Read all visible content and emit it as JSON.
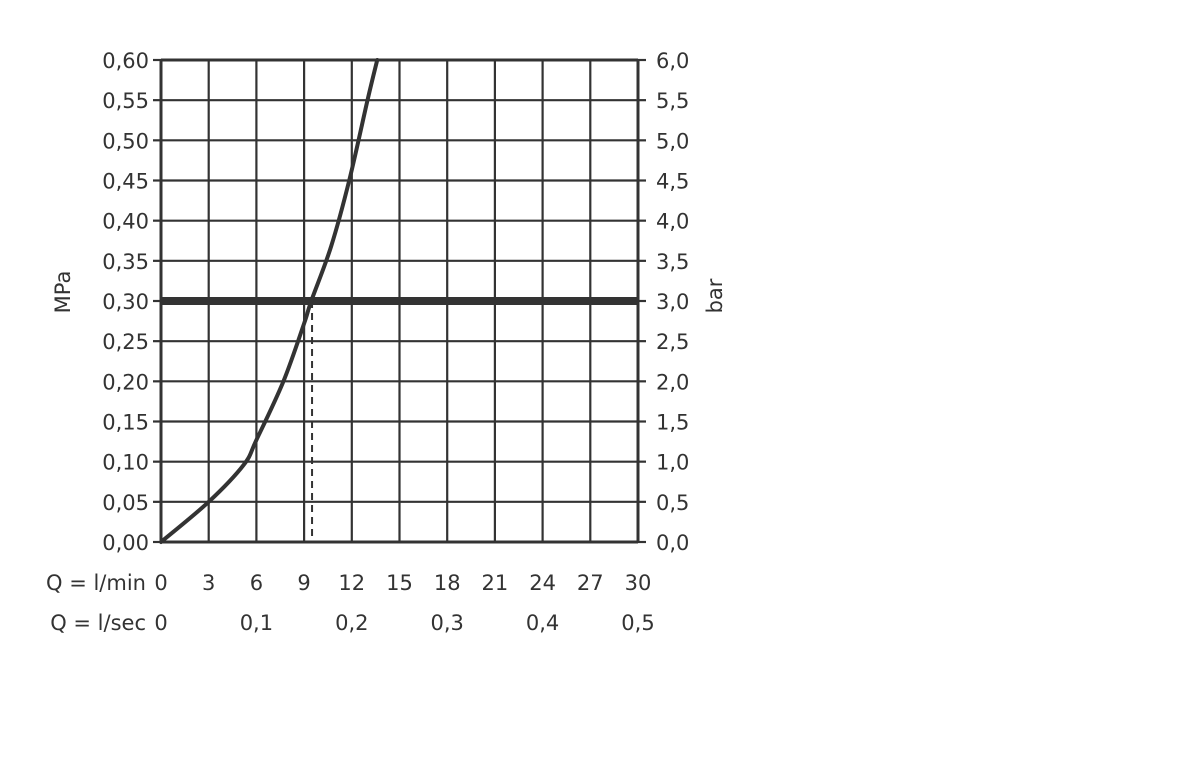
{
  "chart_data": {
    "type": "line",
    "title": "",
    "ylabel": "MPa",
    "ylabel_right": "bar",
    "xlabel_rows": [
      {
        "label": "Q = l/min",
        "ticks": [
          "0",
          "3",
          "6",
          "9",
          "12",
          "15",
          "18",
          "21",
          "24",
          "27",
          "30"
        ],
        "values": [
          0,
          3,
          6,
          9,
          12,
          15,
          18,
          21,
          24,
          27,
          30
        ]
      },
      {
        "label": "Q = l/sec",
        "ticks": [
          "0",
          "0,1",
          "0,2",
          "0,3",
          "0,4",
          "0,5"
        ],
        "values": [
          0,
          6,
          12,
          18,
          24,
          30
        ]
      }
    ],
    "xlim": [
      0,
      30
    ],
    "ylim": [
      0,
      0.6
    ],
    "yticks": [
      "0,00",
      "0,05",
      "0,10",
      "0,15",
      "0,20",
      "0,25",
      "0,30",
      "0,35",
      "0,40",
      "0,45",
      "0,50",
      "0,55",
      "0,60"
    ],
    "yticks_right": [
      "0,0",
      "0,5",
      "1,0",
      "1,5",
      "2,0",
      "2,5",
      "3,0",
      "3,5",
      "4,0",
      "4,5",
      "5,0",
      "5,5",
      "6,0"
    ],
    "grid": true,
    "series": [
      {
        "x": [
          0,
          3,
          5.2,
          6,
          7.7,
          9.0,
          9.45,
          10.7,
          11.85,
          13.0,
          13.6
        ],
        "y": [
          0,
          0.05,
          0.096,
          0.127,
          0.2,
          0.272,
          0.3,
          0.368,
          0.451,
          0.551,
          0.6
        ]
      }
    ],
    "reference_line_y": 0.3,
    "reference_line_x_dashed": 9.5,
    "color": "#333333"
  }
}
